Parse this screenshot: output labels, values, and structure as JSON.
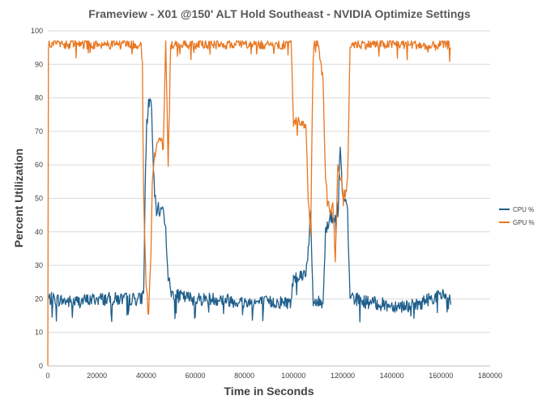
{
  "chart_data": {
    "type": "line",
    "title": "Frameview - X01 @150' ALT Hold Southeast - NVIDIA Optimize Settings",
    "xlabel": "Time in Seconds",
    "ylabel": "Percent Utilization",
    "xlim": [
      0,
      180000
    ],
    "ylim": [
      0,
      100
    ],
    "x_ticks": [
      0,
      20000,
      40000,
      60000,
      80000,
      100000,
      120000,
      140000,
      160000,
      180000
    ],
    "y_ticks": [
      0,
      10,
      20,
      30,
      40,
      50,
      60,
      70,
      80,
      90,
      100
    ],
    "grid": "horizontal",
    "legend": "right",
    "series": [
      {
        "name": "CPU %",
        "color": "#1f5f8b",
        "noise": 2,
        "x": [
          0,
          2000,
          10000,
          20000,
          30000,
          38000,
          39000,
          40000,
          41000,
          42000,
          43000,
          44000,
          45000,
          46000,
          47000,
          48000,
          49000,
          50000,
          52000,
          60000,
          70000,
          80000,
          90000,
          99000,
          100000,
          101000,
          103000,
          105000,
          106000,
          107000,
          107500,
          108000,
          110000,
          112000,
          113000,
          115000,
          116000,
          118000,
          119000,
          120000,
          121000,
          122000,
          122500,
          123000,
          125000,
          130000,
          140000,
          150000,
          155000,
          160000,
          163000,
          164000
        ],
        "y": [
          20,
          20,
          19,
          20,
          20,
          20,
          22,
          70,
          78,
          80,
          58,
          46,
          47,
          46,
          48,
          40,
          27,
          22,
          21,
          20,
          20,
          19,
          19,
          19,
          27,
          27,
          27,
          28,
          35,
          45,
          30,
          19,
          19,
          19,
          40,
          45,
          43,
          48,
          65,
          50,
          48,
          48,
          30,
          21,
          20,
          19,
          18,
          18,
          20,
          21,
          21,
          20
        ]
      },
      {
        "name": "GPU %",
        "color": "#e87722",
        "noise": 1.5,
        "x": [
          0,
          200,
          600,
          2000,
          10000,
          20000,
          30000,
          37000,
          38000,
          38500,
          39000,
          40000,
          40500,
          41000,
          42000,
          42500,
          43000,
          44000,
          45000,
          46000,
          47000,
          48000,
          49000,
          50000,
          52000,
          60000,
          70000,
          80000,
          90000,
          99000,
          100000,
          101000,
          103000,
          105000,
          106000,
          107000,
          108000,
          109000,
          110000,
          111000,
          112000,
          113000,
          114000,
          115000,
          116000,
          117000,
          118000,
          119000,
          120000,
          121000,
          122000,
          122500,
          123000,
          125000,
          130000,
          140000,
          150000,
          155000,
          160000,
          164000
        ],
        "y": [
          0,
          95,
          96,
          96,
          96,
          96,
          96,
          96,
          95,
          90,
          50,
          25,
          20,
          14,
          35,
          55,
          60,
          65,
          67,
          68,
          65,
          96,
          60,
          96,
          96,
          96,
          96,
          96,
          96,
          96,
          73,
          73,
          73,
          72,
          50,
          40,
          96,
          96,
          96,
          90,
          85,
          55,
          50,
          45,
          50,
          30,
          60,
          56,
          54,
          50,
          55,
          75,
          96,
          96,
          96,
          96,
          96,
          95,
          96,
          96
        ]
      }
    ]
  }
}
